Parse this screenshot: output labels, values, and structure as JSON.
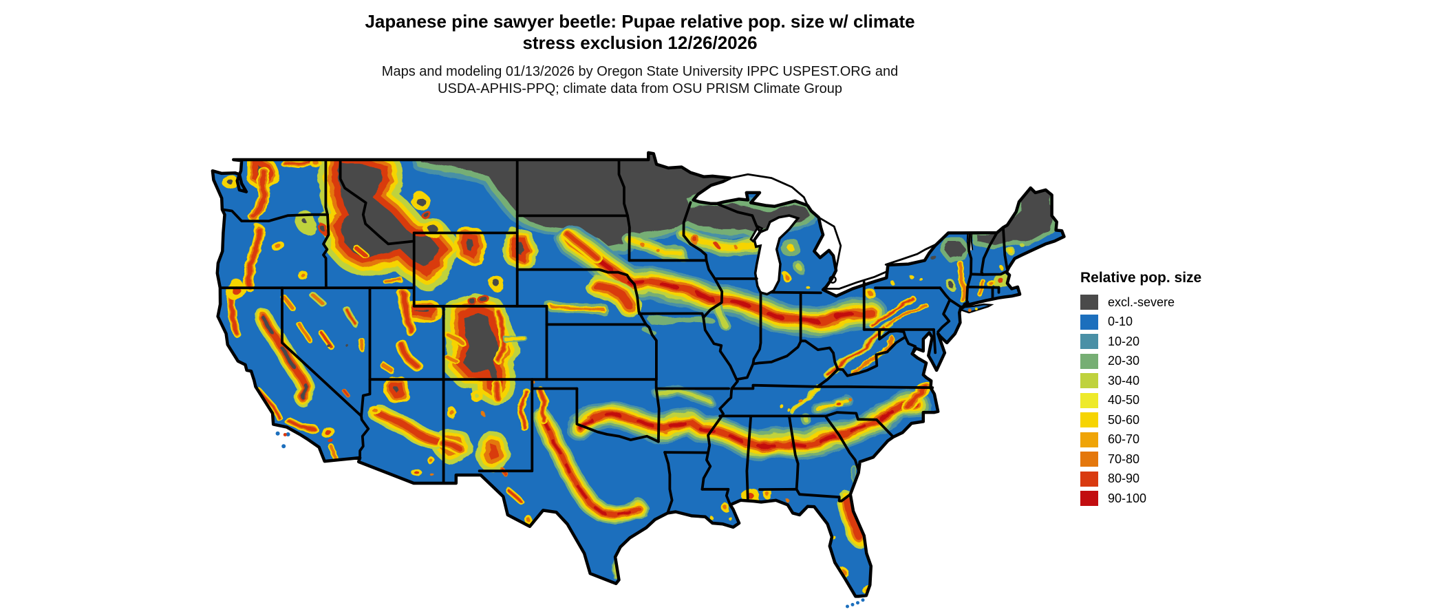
{
  "title": {
    "line1": "Japanese pine sawyer beetle: Pupae relative pop. size w/ climate",
    "line2": "stress exclusion 12/26/2026"
  },
  "subtitle": {
    "line1": "Maps and modeling 01/13/2026 by Oregon State University IPPC USPEST.ORG and",
    "line2": "USDA-APHIS-PPQ; climate data from OSU PRISM Climate Group"
  },
  "legend": {
    "title": "Relative pop. size",
    "items": [
      {
        "label": "excl.-severe",
        "color": "#4a4a4a"
      },
      {
        "label": "0-10",
        "color": "#1c6fbd"
      },
      {
        "label": "10-20",
        "color": "#4a90a6"
      },
      {
        "label": "20-30",
        "color": "#76ae74"
      },
      {
        "label": "30-40",
        "color": "#bfd23d"
      },
      {
        "label": "40-50",
        "color": "#eeea2a"
      },
      {
        "label": "50-60",
        "color": "#f6d402"
      },
      {
        "label": "60-70",
        "color": "#efa407"
      },
      {
        "label": "70-80",
        "color": "#e4770c"
      },
      {
        "label": "80-90",
        "color": "#d93a10"
      },
      {
        "label": "90-100",
        "color": "#c20d10"
      }
    ]
  },
  "map": {
    "colors": {
      "background": "#ffffff",
      "state_border": "#000000",
      "base_population_fill": "#1c6fbd",
      "lake_fill": "#ffffff"
    }
  }
}
